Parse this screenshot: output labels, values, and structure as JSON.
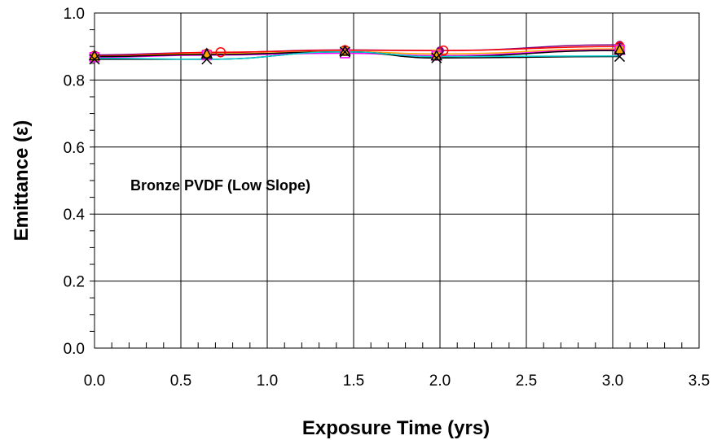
{
  "chart_data": {
    "type": "line",
    "annotation": "Bronze PVDF (Low Slope)",
    "xlabel": "Exposure Time (yrs)",
    "ylabel": "Emittance (ε)",
    "xlim": [
      0,
      3.5
    ],
    "ylim": [
      0,
      1.0
    ],
    "xticks": [
      "0.0",
      "0.5",
      "1.0",
      "1.5",
      "2.0",
      "2.5",
      "3.0",
      "3.5"
    ],
    "yticks": [
      "0.0",
      "0.2",
      "0.4",
      "0.6",
      "0.8",
      "1.0"
    ],
    "grid": true,
    "legend": "none",
    "series": [
      {
        "color": "#800080",
        "marker": "circle",
        "x": [
          0,
          0.65,
          1.45,
          2.0,
          3.04
        ],
        "y": [
          0.875,
          0.882,
          0.89,
          0.888,
          0.905
        ]
      },
      {
        "color": "#FF0000",
        "marker": "circle-open",
        "x": [
          0,
          0.73,
          1.45,
          2.02,
          3.04
        ],
        "y": [
          0.872,
          0.883,
          0.889,
          0.888,
          0.9
        ]
      },
      {
        "color": "#FFA500",
        "marker": "square",
        "x": [
          0,
          0.65,
          1.45,
          1.98,
          3.04
        ],
        "y": [
          0.87,
          0.878,
          0.885,
          0.878,
          0.893
        ]
      },
      {
        "color": "#FF00FF",
        "marker": "square-open",
        "x": [
          0,
          0.65,
          1.45,
          1.98,
          3.04
        ],
        "y": [
          0.868,
          0.874,
          0.88,
          0.873,
          0.89
        ]
      },
      {
        "color": "#000000",
        "marker": "triangle-open",
        "x": [
          0,
          0.65,
          1.45,
          1.98,
          3.04
        ],
        "y": [
          0.87,
          0.876,
          0.884,
          0.87,
          0.888
        ]
      },
      {
        "color": "#000000",
        "marker": "x",
        "x": [
          0,
          0.65,
          1.45,
          1.98,
          3.04
        ],
        "y": [
          0.862,
          0.862,
          0.884,
          0.866,
          0.87
        ]
      },
      {
        "color": "#00CED1",
        "marker": "none",
        "x": [
          0,
          0.65,
          1.45,
          1.98,
          3.04
        ],
        "y": [
          0.865,
          0.862,
          0.884,
          0.87,
          0.872
        ]
      }
    ]
  }
}
